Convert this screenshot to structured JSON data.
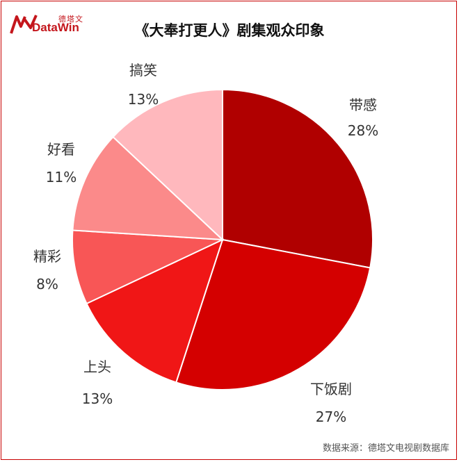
{
  "header": {
    "logo_cn": "德塔文",
    "logo_en": "DataWin",
    "title": "《大奉打更人》剧集观众印象"
  },
  "chart_data": {
    "type": "pie",
    "start_angle_deg": 0,
    "direction": "clockwise",
    "slices": [
      {
        "label": "带感",
        "value": 28,
        "value_label": "28%",
        "color": "#b00000"
      },
      {
        "label": "下饭剧",
        "value": 27,
        "value_label": "27%",
        "color": "#d40000"
      },
      {
        "label": "上头",
        "value": 13,
        "value_label": "13%",
        "color": "#f01616"
      },
      {
        "label": "精彩",
        "value": 8,
        "value_label": "8%",
        "color": "#f85656"
      },
      {
        "label": "好看",
        "value": 11,
        "value_label": "11%",
        "color": "#fb8a8a"
      },
      {
        "label": "搞笑",
        "value": 13,
        "value_label": "13%",
        "color": "#ffb8bd"
      }
    ]
  },
  "footer": {
    "source": "数据来源：德塔文电视剧数据库"
  }
}
